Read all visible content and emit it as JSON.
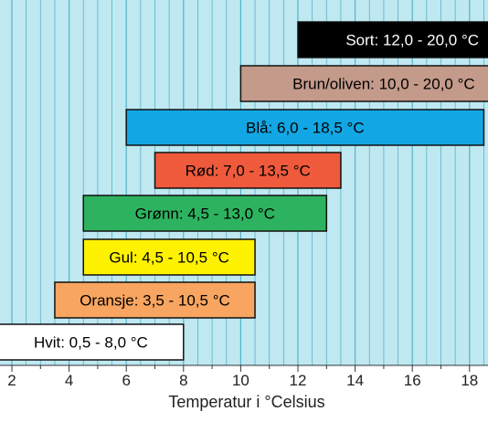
{
  "chart_data": {
    "type": "bar",
    "orientation": "horizontal-range",
    "xlabel": "Temperatur i °Celsius",
    "xlim": [
      0.5,
      21
    ],
    "xticks": [
      2,
      4,
      6,
      8,
      10,
      12,
      14,
      16,
      18
    ],
    "minor_step": 0.5,
    "grid": true,
    "background": "#bfe8f1",
    "grid_color": "#55b3c9",
    "bars": [
      {
        "label": "Sort: 12,0 - 20,0 °C",
        "start": 12.0,
        "end": 20.0,
        "color": "#000000",
        "text_color": "#ffffff"
      },
      {
        "label": "Brun/oliven: 10,0 - 20,0 °C",
        "start": 10.0,
        "end": 20.0,
        "color": "#c49a8a",
        "text_color": "#000000"
      },
      {
        "label": "Blå: 6,0 - 18,5 °C",
        "start": 6.0,
        "end": 18.5,
        "color": "#12a7e4",
        "text_color": "#000000"
      },
      {
        "label": "Rød: 7,0 - 13,5 °C",
        "start": 7.0,
        "end": 13.5,
        "color": "#ef5a3c",
        "text_color": "#000000"
      },
      {
        "label": "Grønn: 4,5 - 13,0 °C",
        "start": 4.5,
        "end": 13.0,
        "color": "#2db35f",
        "text_color": "#000000"
      },
      {
        "label": "Gul: 4,5 - 10,5 °C",
        "start": 4.5,
        "end": 10.5,
        "color": "#fff200",
        "text_color": "#000000"
      },
      {
        "label": "Oransje: 3,5 - 10,5 °C",
        "start": 3.5,
        "end": 10.5,
        "color": "#f7a560",
        "text_color": "#000000"
      },
      {
        "label": "Hvit: 0,5 - 8,0 °C",
        "start": 0.5,
        "end": 8.0,
        "color": "#ffffff",
        "text_color": "#000000"
      }
    ]
  }
}
